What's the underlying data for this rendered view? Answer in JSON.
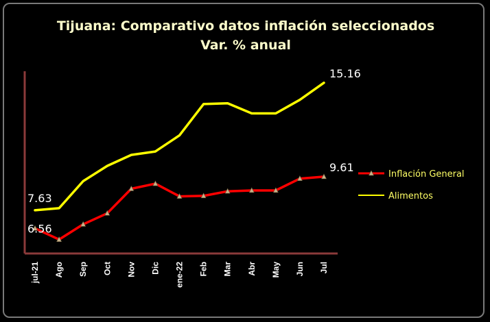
{
  "chart_data": {
    "type": "line",
    "title": "Tijuana: Comparativo datos inflación seleccionados",
    "subtitle": "Var. % anual",
    "xlabel": "",
    "ylabel": "",
    "categories": [
      "jul-21",
      "Ago",
      "Sep",
      "Oct",
      "Nov",
      "Dic",
      "ene-22",
      "Feb",
      "Mar",
      "Abr",
      "May",
      "Jun",
      "Jul"
    ],
    "ylim": [
      5.4,
      16.0
    ],
    "grid": false,
    "legend_position": "right",
    "series": [
      {
        "name": "Inflación General",
        "color": "#ff0000",
        "marker": "triangle",
        "values": [
          6.56,
          5.9,
          6.8,
          7.45,
          8.9,
          9.2,
          8.45,
          8.48,
          8.75,
          8.8,
          8.8,
          9.5,
          9.61
        ]
      },
      {
        "name": "Alimentos",
        "color": "#ffff00",
        "marker": "none",
        "values": [
          7.63,
          7.75,
          9.35,
          10.25,
          10.9,
          11.1,
          12.05,
          13.9,
          13.95,
          13.35,
          13.35,
          14.15,
          15.16
        ]
      }
    ],
    "data_labels": [
      {
        "series": 0,
        "index": 0,
        "text": "6.56"
      },
      {
        "series": 0,
        "index": 12,
        "text": "9.61"
      },
      {
        "series": 1,
        "index": 0,
        "text": "7.63"
      },
      {
        "series": 1,
        "index": 12,
        "text": "15.16"
      }
    ]
  }
}
